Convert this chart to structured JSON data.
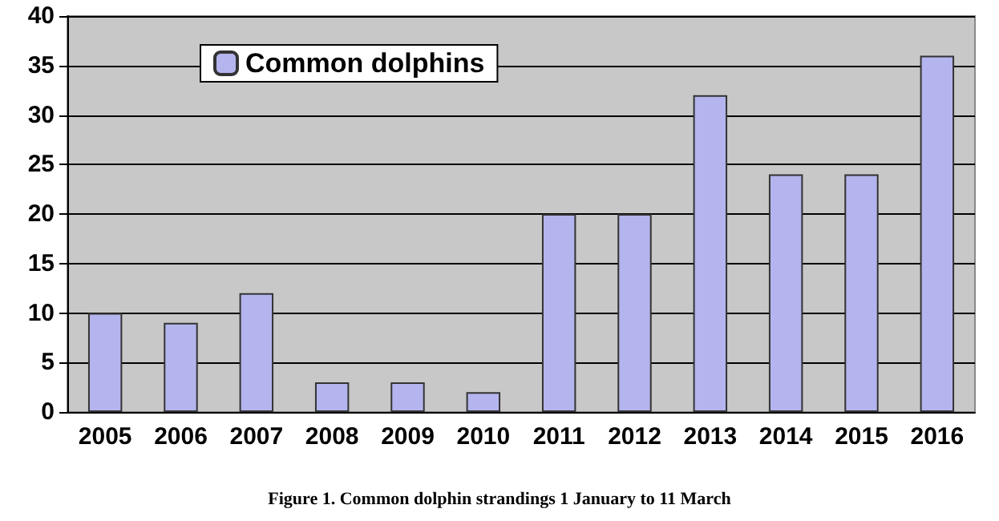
{
  "chart_data": {
    "type": "bar",
    "categories": [
      "2005",
      "2006",
      "2007",
      "2008",
      "2009",
      "2010",
      "2011",
      "2012",
      "2013",
      "2014",
      "2015",
      "2016"
    ],
    "series": [
      {
        "name": "Common dolphins",
        "color": "#b4b4ee",
        "values": [
          10,
          9,
          12,
          3,
          3,
          2,
          20,
          20,
          32,
          24,
          24,
          36
        ]
      }
    ],
    "ylim": [
      0,
      40
    ],
    "yticks": [
      0,
      5,
      10,
      15,
      20,
      25,
      30,
      35,
      40
    ],
    "grid": "y",
    "legend": "top left",
    "annotations": [
      "Figure 1. Common dolphin strandings 1 January to 11 March"
    ]
  }
}
